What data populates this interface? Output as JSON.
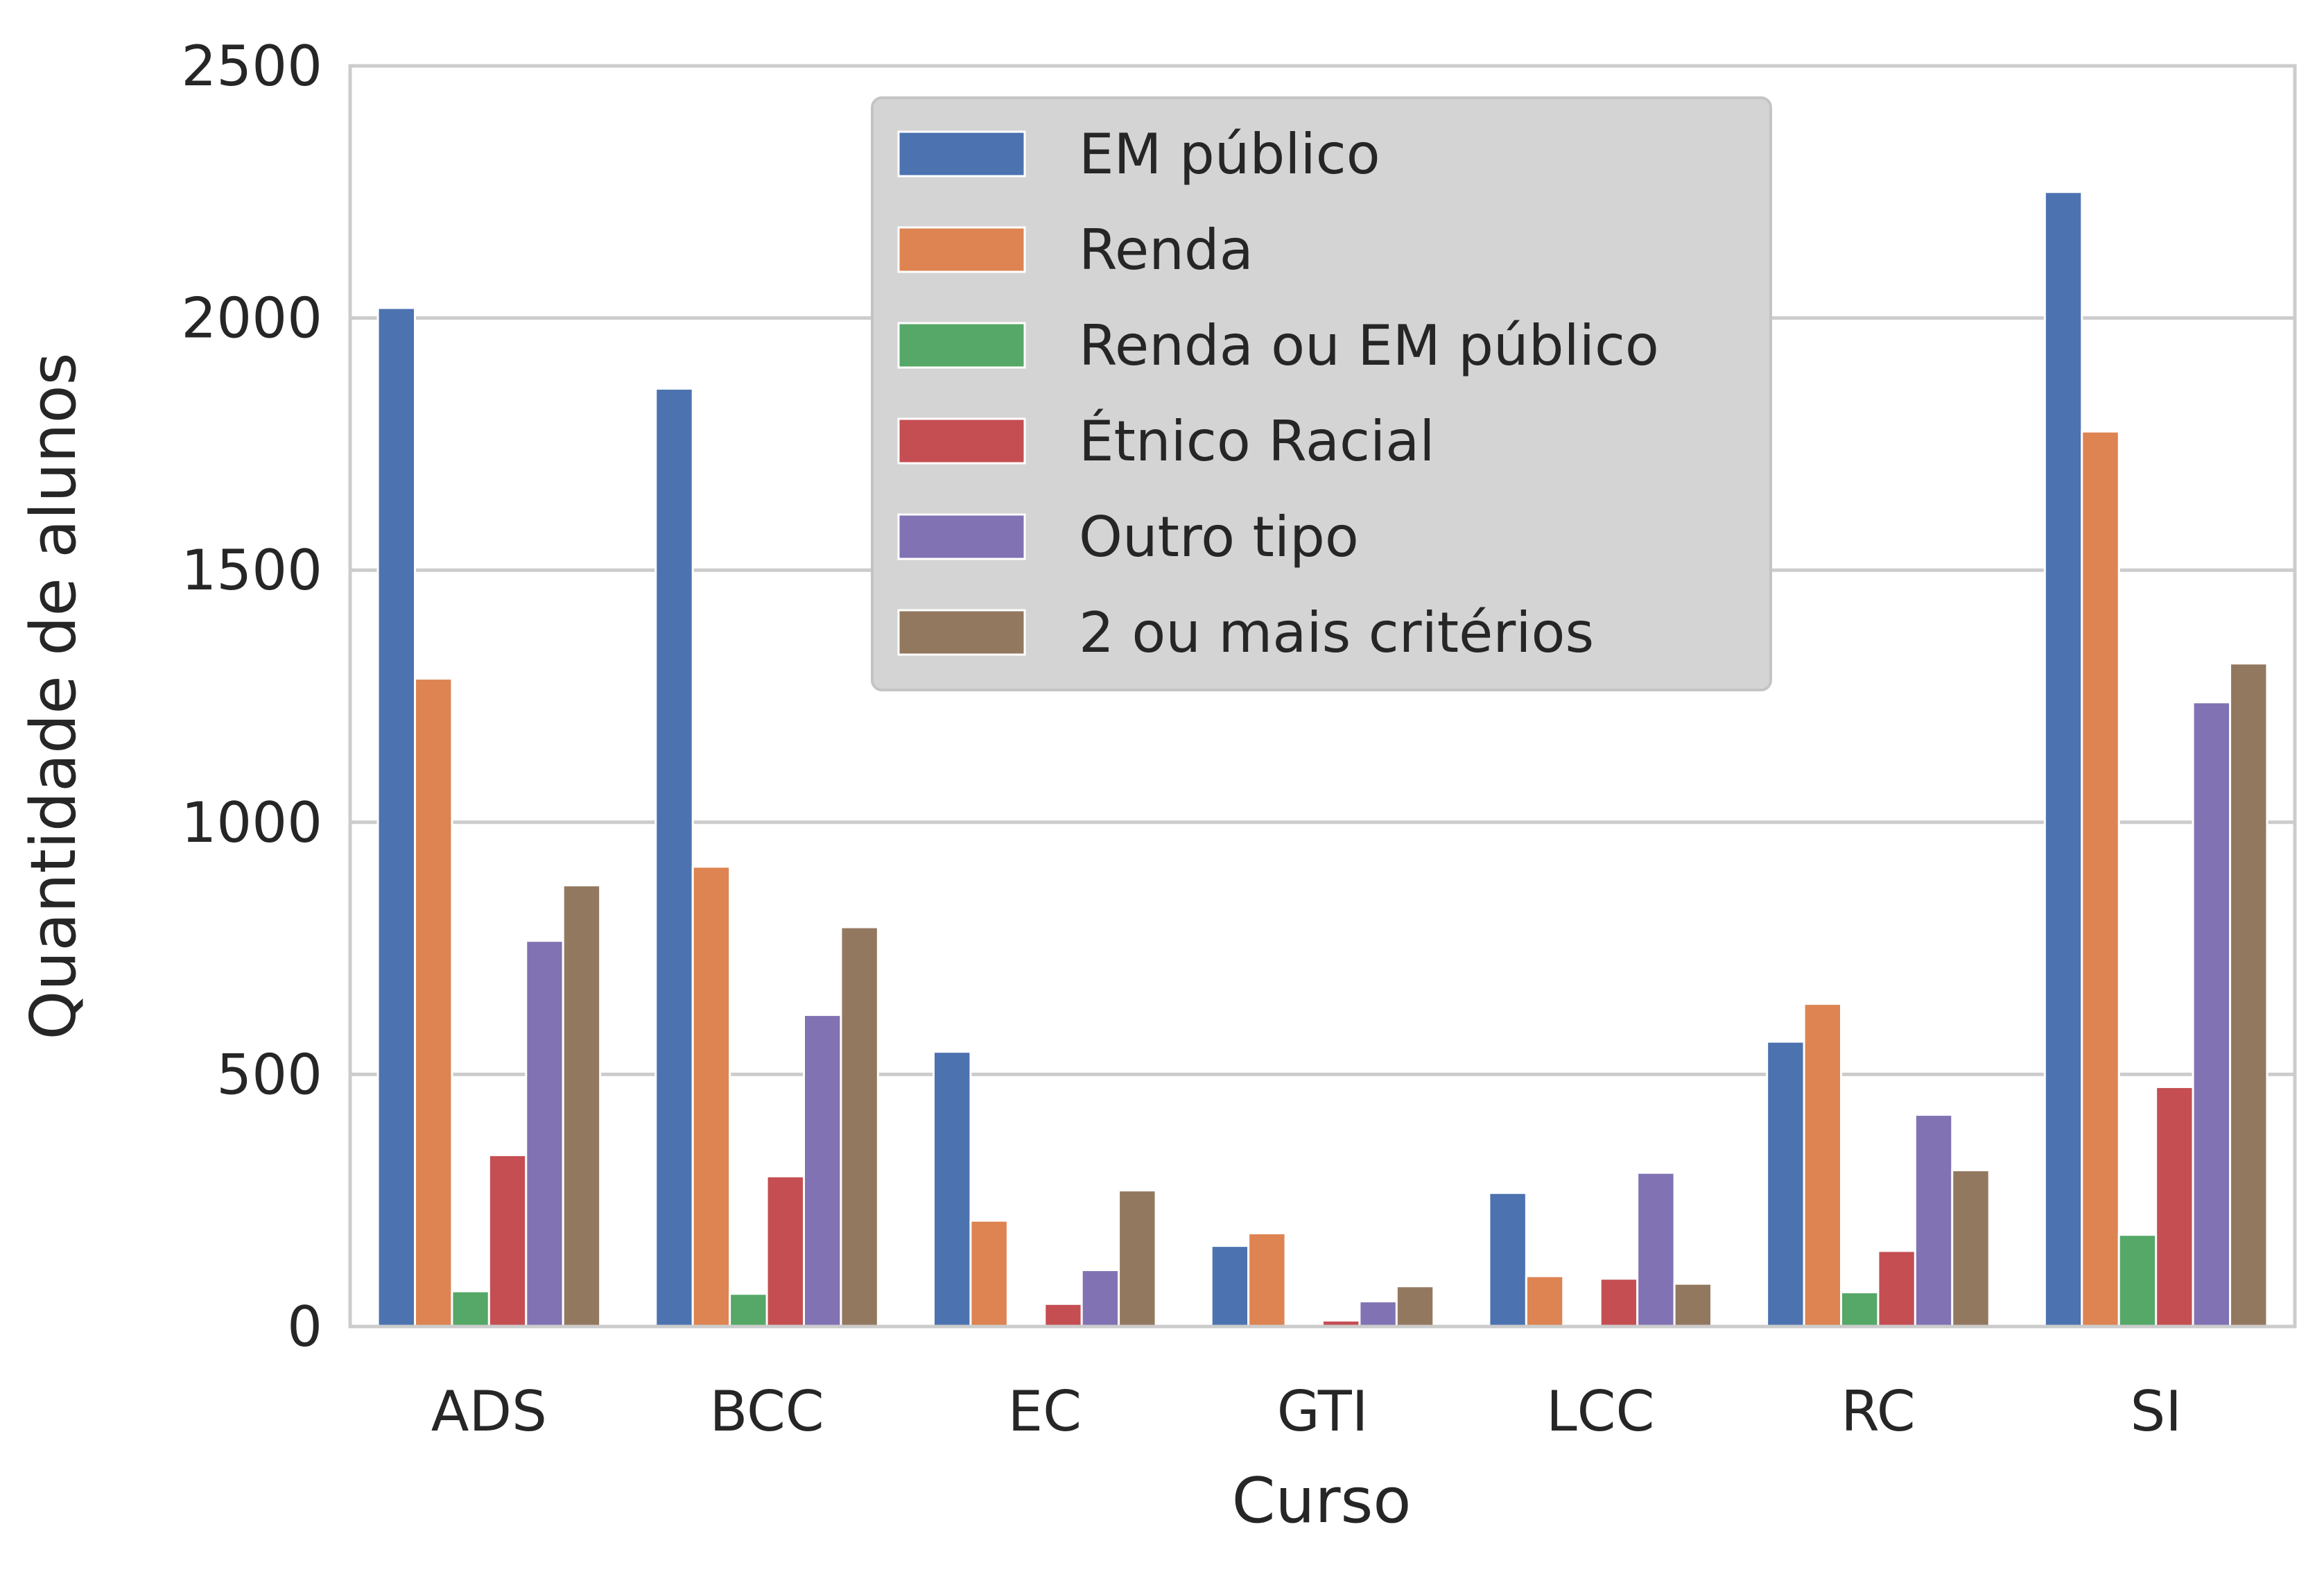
{
  "chart_data": {
    "type": "bar",
    "xlabel": "Curso",
    "ylabel": "Quantidade de alunos",
    "categories": [
      "ADS",
      "BCC",
      "EC",
      "GTI",
      "LCC",
      "RC",
      "SI"
    ],
    "ylim": [
      0,
      2500
    ],
    "yticks": [
      0,
      500,
      1000,
      1500,
      2000,
      2500
    ],
    "grid": true,
    "legend_position": "top-center",
    "series": [
      {
        "name": "EM público",
        "color": "#4c72b0",
        "values": [
          2020,
          1860,
          545,
          160,
          265,
          565,
          2250
        ]
      },
      {
        "name": "Renda",
        "color": "#dd8452",
        "values": [
          1285,
          912,
          210,
          185,
          100,
          640,
          1775
        ]
      },
      {
        "name": "Renda ou EM público",
        "color": "#55a868",
        "values": [
          70,
          65,
          0,
          0,
          0,
          68,
          182
        ]
      },
      {
        "name": "Étnico Racial",
        "color": "#c44e52",
        "values": [
          340,
          298,
          45,
          12,
          95,
          150,
          475
        ]
      },
      {
        "name": "Outro tipo",
        "color": "#8172b3",
        "values": [
          765,
          618,
          112,
          50,
          305,
          420,
          1238
        ]
      },
      {
        "name": "2 ou mais critérios",
        "color": "#937860",
        "values": [
          875,
          792,
          270,
          80,
          85,
          310,
          1315
        ]
      }
    ]
  }
}
